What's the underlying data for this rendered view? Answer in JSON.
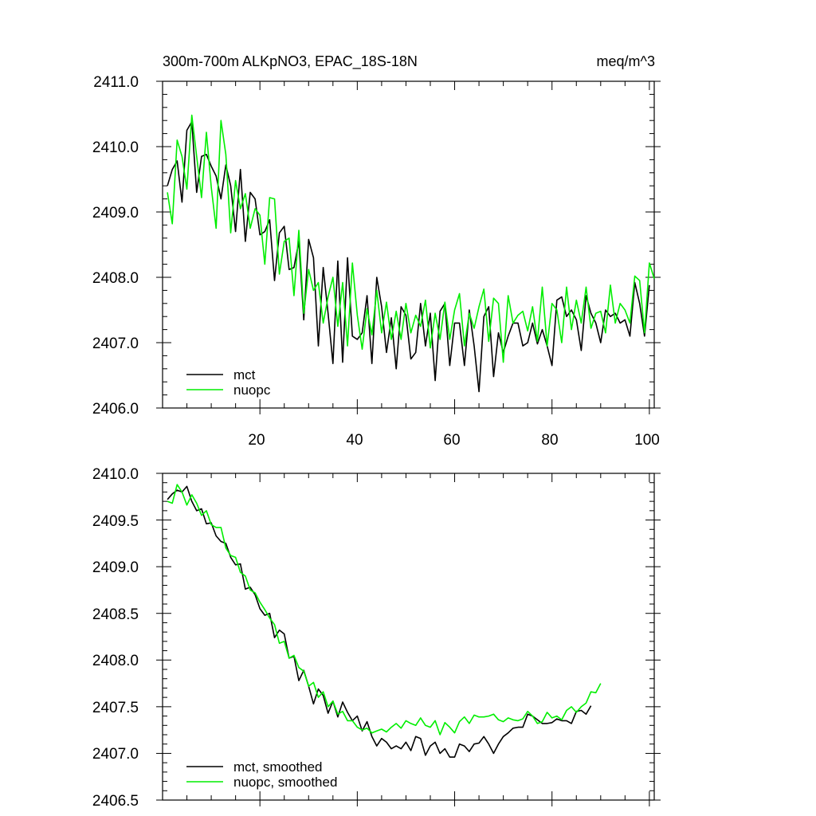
{
  "colors": {
    "mct": "#000000",
    "nuopc": "#00ee00",
    "axis": "#000000"
  },
  "chart_data": [
    {
      "type": "line",
      "title": "300m-700m ALKpNO3, EPAC_18S-18N",
      "units": "meq/m^3",
      "xlim": [
        0,
        101
      ],
      "ylim": [
        2406.0,
        2411.0
      ],
      "x_ticks": [
        "20",
        "40",
        "60",
        "80",
        "100"
      ],
      "y_ticks": [
        "2406.0",
        "2407.0",
        "2408.0",
        "2409.0",
        "2410.0",
        "2411.0"
      ],
      "legend_position": "bottom-left",
      "series": [
        {
          "name": "mct",
          "color": "#000000",
          "values": [
            2409.4,
            2409.65,
            2409.78,
            2409.15,
            2410.25,
            2410.38,
            2409.3,
            2409.85,
            2409.88,
            2409.7,
            2409.55,
            2409.2,
            2409.72,
            2409.4,
            2408.7,
            2409.65,
            2408.55,
            2409.3,
            2409.2,
            2408.65,
            2408.7,
            2408.88,
            2407.95,
            2408.68,
            2408.78,
            2408.12,
            2408.15,
            2408.55,
            2407.35,
            2408.58,
            2408.3,
            2406.95,
            2408.15,
            2407.45,
            2406.68,
            2408.25,
            2406.7,
            2408.3,
            2407.1,
            2407.05,
            2407.15,
            2407.72,
            2406.68,
            2408.0,
            2407.55,
            2406.85,
            2407.38,
            2406.6,
            2407.55,
            2407.42,
            2406.75,
            2406.85,
            2407.6,
            2406.95,
            2407.45,
            2406.42,
            2407.48,
            2407.6,
            2406.65,
            2407.3,
            2407.3,
            2406.65,
            2407.5,
            2406.95,
            2406.25,
            2407.4,
            2407.55,
            2406.48,
            2407.15,
            2406.85,
            2407.1,
            2407.3,
            2407.3,
            2406.95,
            2407.0,
            2407.3,
            2406.98,
            2407.2,
            2406.95,
            2406.65,
            2407.65,
            2407.7,
            2407.4,
            2407.5,
            2407.35,
            2406.88,
            2407.72,
            2407.45,
            2407.3,
            2407.0,
            2407.5,
            2407.4,
            2407.45,
            2407.3,
            2407.35,
            2407.1,
            2407.92,
            2407.6,
            2407.1,
            2407.88
          ]
        },
        {
          "name": "nuopc",
          "color": "#00ee00",
          "values": [
            2409.3,
            2408.82,
            2410.1,
            2409.85,
            2409.35,
            2410.48,
            2409.85,
            2409.22,
            2410.22,
            2409.38,
            2408.75,
            2410.4,
            2409.88,
            2408.68,
            2409.48,
            2409.05,
            2409.28,
            2408.75,
            2409.05,
            2408.95,
            2408.2,
            2409.22,
            2409.2,
            2408.05,
            2408.55,
            2408.6,
            2407.72,
            2408.72,
            2407.45,
            2408.12,
            2407.8,
            2407.92,
            2407.3,
            2407.7,
            2408.0,
            2407.25,
            2407.92,
            2406.95,
            2408.22,
            2407.42,
            2406.9,
            2407.52,
            2407.12,
            2407.8,
            2407.15,
            2407.62,
            2407.05,
            2407.48,
            2407.05,
            2407.6,
            2407.15,
            2407.42,
            2407.25,
            2407.65,
            2406.92,
            2407.45,
            2407.05,
            2407.62,
            2407.05,
            2407.5,
            2407.75,
            2406.95,
            2407.45,
            2407.22,
            2407.55,
            2407.82,
            2407.02,
            2407.68,
            2407.6,
            2406.7,
            2407.72,
            2407.3,
            2407.42,
            2407.48,
            2407.18,
            2407.55,
            2407.02,
            2407.85,
            2406.95,
            2407.6,
            2407.5,
            2407.0,
            2407.85,
            2407.2,
            2407.65,
            2407.3,
            2407.85,
            2407.22,
            2407.45,
            2407.48,
            2407.15,
            2407.88,
            2407.3,
            2407.6,
            2407.5,
            2407.3,
            2408.02,
            2407.95,
            2407.15,
            2408.22,
            2407.98
          ]
        }
      ]
    },
    {
      "type": "line",
      "title": "",
      "units": "",
      "xlim": [
        0,
        101
      ],
      "ylim": [
        2406.5,
        2410.0
      ],
      "x_ticks": [
        "",
        "",
        "",
        "",
        ""
      ],
      "y_ticks": [
        "2406.5",
        "2407.0",
        "2407.5",
        "2408.0",
        "2408.5",
        "2409.0",
        "2409.5",
        "2410.0"
      ],
      "legend_position": "bottom-left",
      "series": [
        {
          "name": "mct, smoothed",
          "color": "#000000",
          "values": [
            2409.72,
            2409.78,
            2409.82,
            2409.8,
            2409.86,
            2409.7,
            2409.6,
            2409.62,
            2409.46,
            2409.47,
            2409.33,
            2409.27,
            2409.25,
            2409.1,
            2409.02,
            2409.03,
            2408.76,
            2408.78,
            2408.7,
            2408.55,
            2408.48,
            2408.5,
            2408.24,
            2408.32,
            2408.28,
            2408.02,
            2408.04,
            2407.78,
            2407.89,
            2407.72,
            2407.53,
            2407.69,
            2407.62,
            2407.43,
            2407.56,
            2407.39,
            2407.55,
            2407.44,
            2407.35,
            2407.4,
            2407.24,
            2407.34,
            2407.18,
            2407.08,
            2407.16,
            2407.12,
            2407.05,
            2407.08,
            2407.05,
            2407.12,
            2407.03,
            2407.18,
            2407.16,
            2406.98,
            2407.08,
            2407.12,
            2407.0,
            2407.05,
            2406.96,
            2406.96,
            2407.1,
            2407.08,
            2407.02,
            2407.1,
            2407.11,
            2407.18,
            2407.1,
            2407.0,
            2407.1,
            2407.18,
            2407.22,
            2407.27,
            2407.28,
            2407.28,
            2407.42,
            2407.4,
            2407.36,
            2407.32,
            2407.32,
            2407.33,
            2407.37,
            2407.35,
            2407.35,
            2407.32,
            2407.45,
            2407.46,
            2407.42,
            2407.51
          ]
        },
        {
          "name": "nuopc, smoothed",
          "color": "#00ee00",
          "values": [
            2409.7,
            2409.68,
            2409.88,
            2409.8,
            2409.66,
            2409.77,
            2409.68,
            2409.55,
            2409.6,
            2409.45,
            2409.42,
            2409.42,
            2409.2,
            2409.12,
            2409.1,
            2408.94,
            2408.9,
            2408.75,
            2408.72,
            2408.62,
            2408.54,
            2408.45,
            2408.38,
            2408.18,
            2408.2,
            2408.02,
            2408.05,
            2407.92,
            2407.88,
            2407.72,
            2407.76,
            2407.6,
            2407.66,
            2407.5,
            2407.56,
            2407.42,
            2407.45,
            2407.35,
            2407.35,
            2407.28,
            2407.25,
            2407.27,
            2407.22,
            2407.24,
            2407.26,
            2407.23,
            2407.28,
            2407.32,
            2407.27,
            2407.35,
            2407.32,
            2407.3,
            2407.38,
            2407.3,
            2407.28,
            2407.35,
            2407.2,
            2407.33,
            2407.28,
            2407.22,
            2407.34,
            2407.39,
            2407.32,
            2407.41,
            2407.39,
            2407.39,
            2407.4,
            2407.42,
            2407.36,
            2407.34,
            2407.38,
            2407.36,
            2407.35,
            2407.37,
            2407.45,
            2407.4,
            2407.32,
            2407.34,
            2407.44,
            2407.38,
            2407.4,
            2407.36,
            2407.46,
            2407.5,
            2407.44,
            2407.5,
            2407.54,
            2407.66,
            2407.65,
            2407.75
          ]
        }
      ]
    }
  ]
}
